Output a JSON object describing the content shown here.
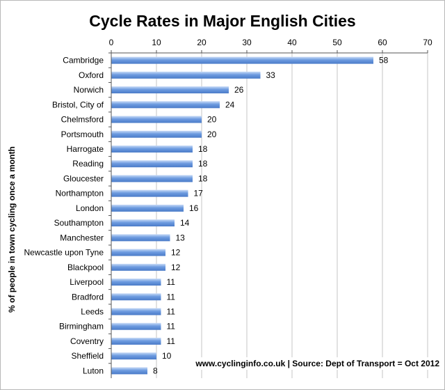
{
  "chart_data": {
    "type": "bar",
    "orientation": "horizontal",
    "title": "Cycle Rates in Major English Cities",
    "xlabel": "",
    "ylabel": "% of people in town cycling once a month",
    "xlim": [
      0,
      70
    ],
    "x_ticks": [
      0,
      10,
      20,
      30,
      40,
      50,
      60,
      70
    ],
    "x_axis_position": "top",
    "grid": true,
    "legend": "none",
    "bar_color": "#6d9be0",
    "categories": [
      "Cambridge",
      "Oxford",
      "Norwich",
      "Bristol, City of",
      "Chelmsford",
      "Portsmouth",
      "Harrogate",
      "Reading",
      "Gloucester",
      "Northampton",
      "London",
      "Southampton",
      "Manchester",
      "Newcastle upon Tyne",
      "Blackpool",
      "Liverpool",
      "Bradford",
      "Leeds",
      "Birmingham",
      "Coventry",
      "Sheffield",
      "Luton"
    ],
    "values": [
      58,
      33,
      26,
      24,
      20,
      20,
      18,
      18,
      18,
      17,
      16,
      14,
      13,
      12,
      12,
      11,
      11,
      11,
      11,
      11,
      10,
      8
    ],
    "annotation": "www.cyclinginfo.co.uk | Source: Dept of Transport = Oct 2012"
  }
}
